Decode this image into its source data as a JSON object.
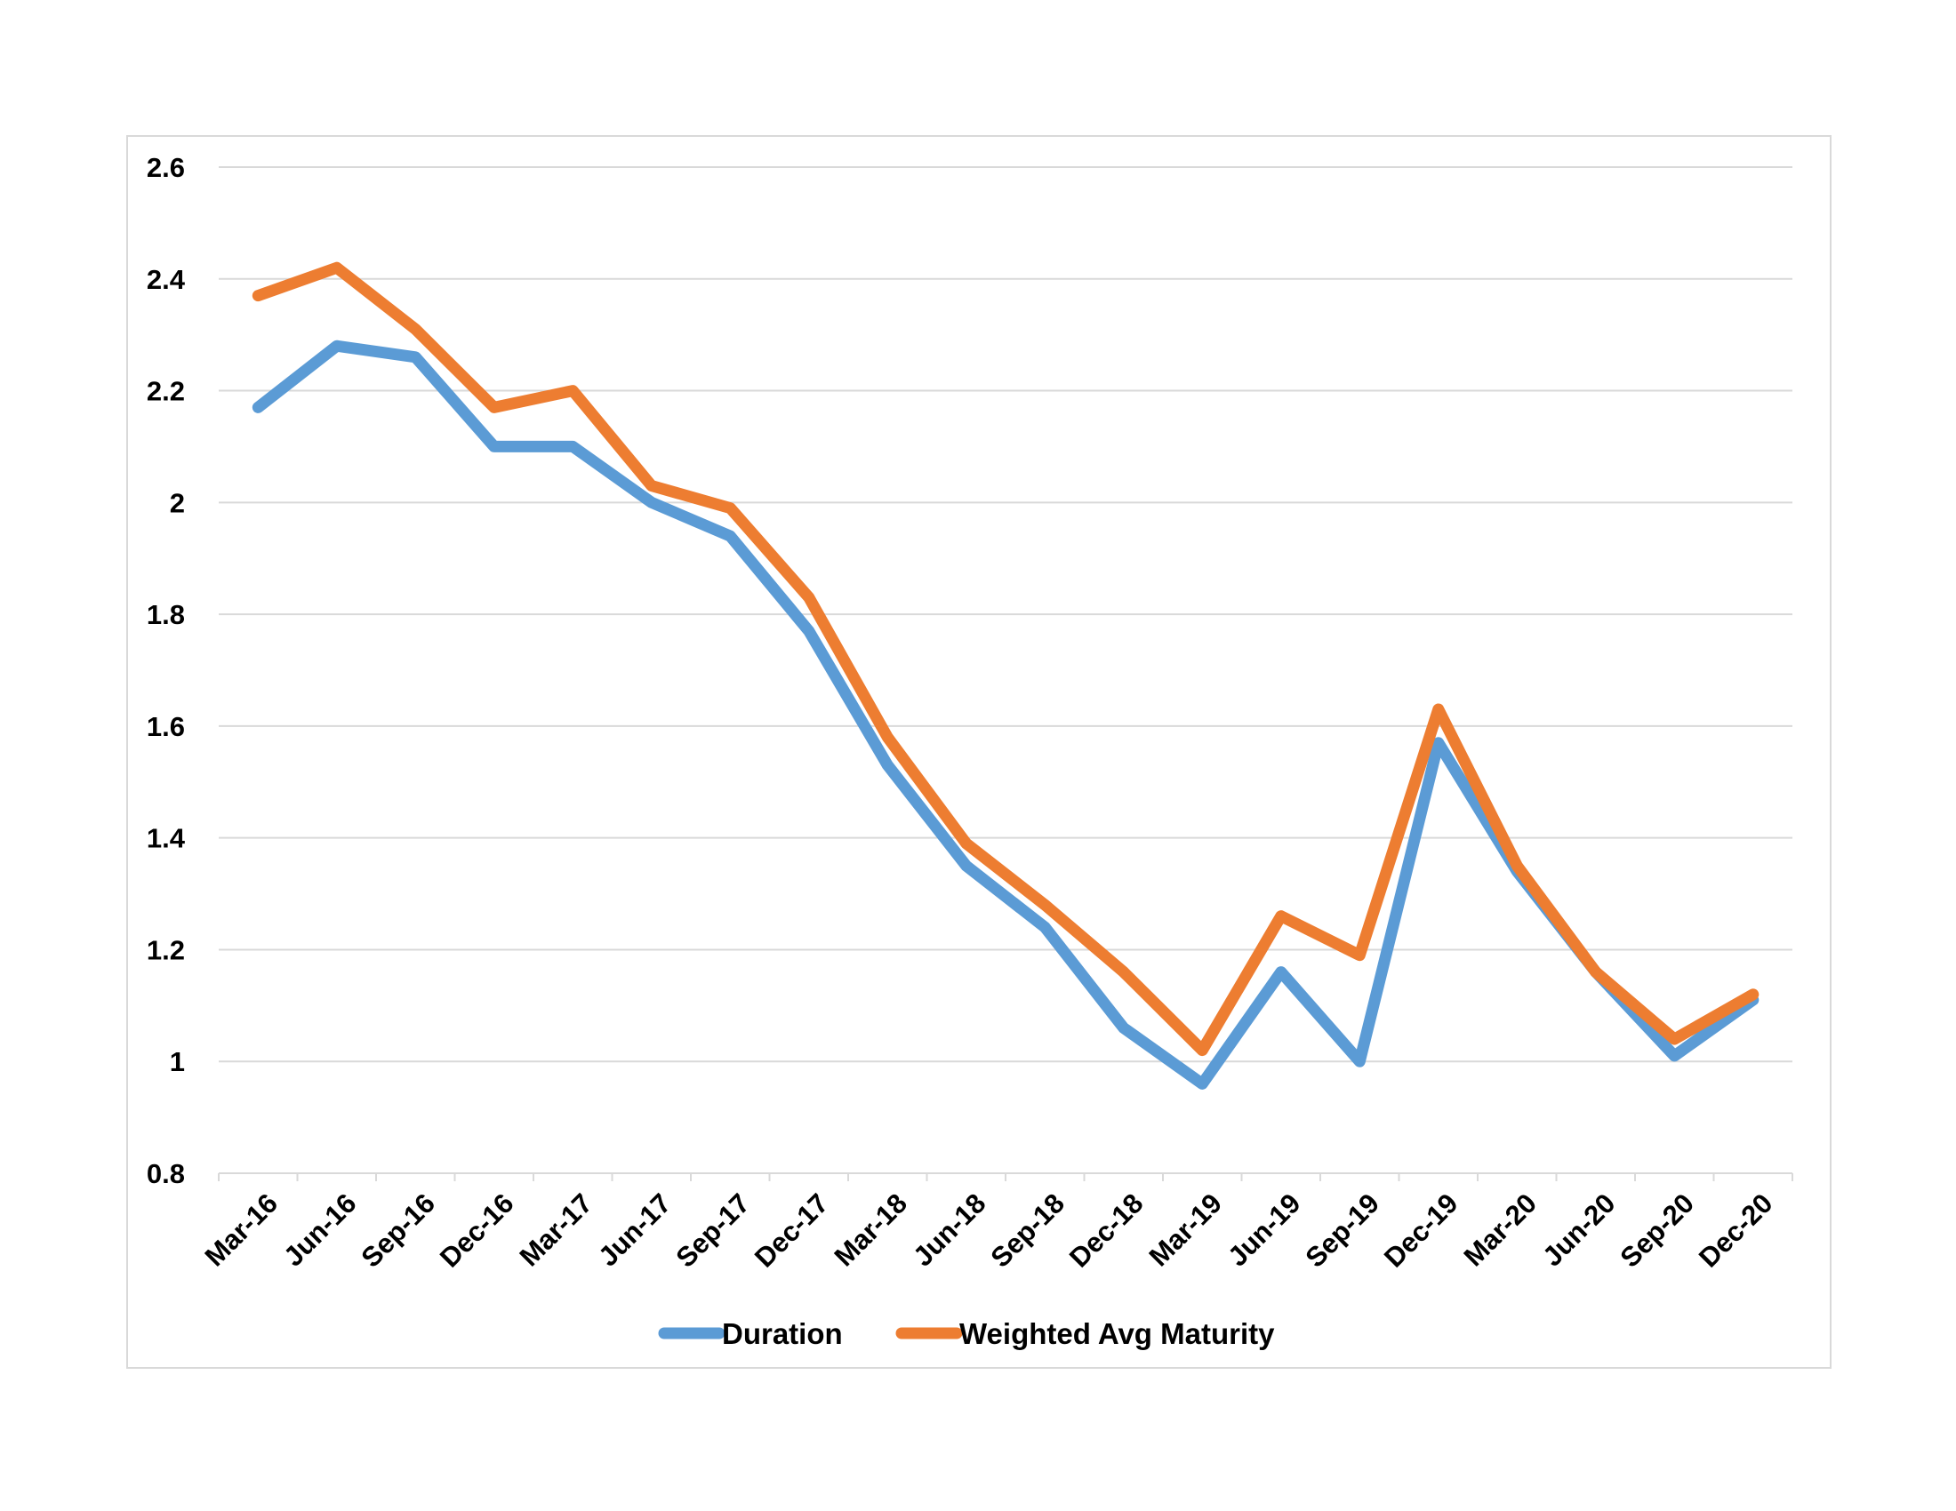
{
  "chart_data": {
    "type": "line",
    "title": "",
    "xlabel": "",
    "ylabel": "",
    "categories": [
      "Mar-16",
      "Jun-16",
      "Sep-16",
      "Dec-16",
      "Mar-17",
      "Jun-17",
      "Sep-17",
      "Dec-17",
      "Mar-18",
      "Jun-18",
      "Sep-18",
      "Dec-18",
      "Mar-19",
      "Jun-19",
      "Sep-19",
      "Dec-19",
      "Mar-20",
      "Jun-20",
      "Sep-20",
      "Dec-20"
    ],
    "ylim": [
      0.8,
      2.6
    ],
    "yticks": [
      "0.8",
      "1",
      "1.2",
      "1.4",
      "1.6",
      "1.8",
      "2",
      "2.2",
      "2.4",
      "2.6"
    ],
    "grid": "horizontal",
    "legend": "bottom",
    "series": [
      {
        "name": "Duration",
        "color": "#5b9bd5",
        "values": [
          2.17,
          2.28,
          2.26,
          2.1,
          2.1,
          2.0,
          1.94,
          1.77,
          1.53,
          1.35,
          1.24,
          1.06,
          0.96,
          1.16,
          1.0,
          1.57,
          1.34,
          1.16,
          1.01,
          1.11
        ]
      },
      {
        "name": "Weighted Avg Maturity",
        "color": "#ed7d31",
        "values": [
          2.37,
          2.42,
          2.31,
          2.17,
          2.2,
          2.03,
          1.99,
          1.83,
          1.58,
          1.39,
          1.28,
          1.16,
          1.02,
          1.26,
          1.19,
          1.63,
          1.35,
          1.16,
          1.04,
          1.12
        ]
      }
    ]
  }
}
